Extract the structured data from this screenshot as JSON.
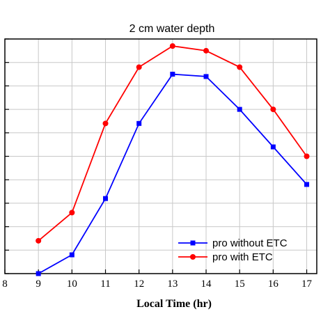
{
  "chart_data": {
    "type": "line",
    "title": "2 cm water depth",
    "xlabel": "Local Time (hr)",
    "ylabel": "",
    "x": [
      9,
      10,
      11,
      12,
      13,
      14,
      15,
      16,
      17
    ],
    "xlim": [
      8,
      17.3
    ],
    "xticks": [
      "8",
      "9",
      "10",
      "11",
      "12",
      "13",
      "14",
      "15",
      "16",
      "17"
    ],
    "ylim": [
      0,
      10
    ],
    "y_tick_count": 11,
    "y_tick_labels_visible": false,
    "grid": true,
    "legend_position": "bottom-right",
    "series": [
      {
        "name": "pro without ETC",
        "color": "#0000ff",
        "marker": "square",
        "values": [
          0.0,
          0.8,
          3.2,
          6.4,
          8.5,
          8.4,
          7.0,
          5.4,
          3.8
        ]
      },
      {
        "name": "pro with ETC",
        "color": "#ff0000",
        "marker": "circle",
        "values": [
          1.4,
          2.6,
          6.4,
          8.8,
          9.7,
          9.5,
          8.8,
          7.0,
          5.0
        ]
      }
    ]
  }
}
